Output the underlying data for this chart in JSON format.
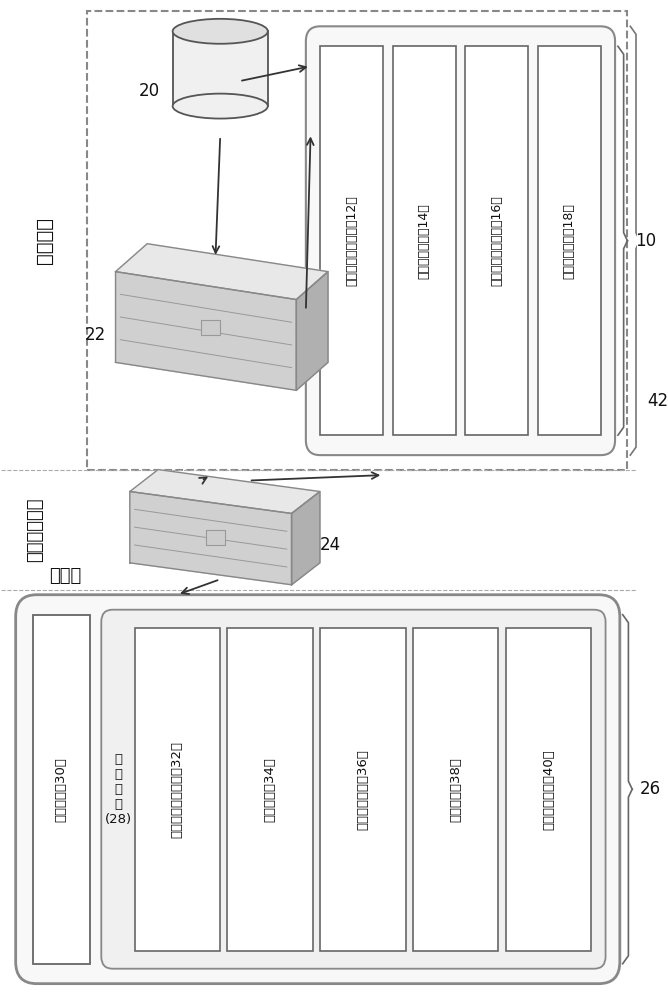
{
  "bg_color": "#ffffff",
  "text_color": "#111111",
  "server_label": "服务器端",
  "server_modules": [
    "第一网络通信模块（12）",
    "登入验证模块（14）",
    "打卡请求产生模块（16）",
    "出勤考核模块（18）"
  ],
  "label_10": "10",
  "label_20": "20",
  "label_22": "22",
  "label_42": "42",
  "external_label": "外部推播系统",
  "label_24": "24",
  "client_label": "客户端",
  "client_module_left": "定位模块（30）",
  "client_app_label": "应\n用\n程\n序\n(28)",
  "client_modules": [
    "第二网络通信模块（32）",
    "登入模块（34）",
    "功能锁定模块（36）",
    "打卡模块（38）",
    "打卡提醒模块（40）"
  ],
  "label_26": "26"
}
